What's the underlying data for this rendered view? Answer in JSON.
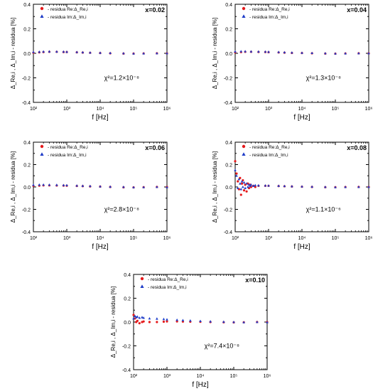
{
  "chart_data": [
    {
      "type": "scatter",
      "panel_label": "x=0.02",
      "chi2_text": "χ²=1.2×10⁻⁸",
      "xlabel": "f  [Hz]",
      "ylabel": "Δ_Re,i , Δ_Im,i - residua [%]",
      "xscale": "log",
      "xlim": [
        100,
        1000000
      ],
      "ylim": [
        -0.4,
        0.4
      ],
      "yticks": [
        "0.4",
        "0.2",
        "0.0",
        "-0.2",
        "-0.4"
      ],
      "xticks": [
        "10²",
        "10³",
        "10⁴",
        "10⁵",
        "10⁶"
      ],
      "legend": [
        "- residua Re:Δ_Re,i",
        "- residua Im:Δ_Im,i"
      ],
      "series": [
        {
          "name": "residua Re",
          "marker": "circle",
          "color": "#e41a1c",
          "points": [
            [
              100,
              0.005
            ],
            [
              150,
              0.008
            ],
            [
              200,
              0.01
            ],
            [
              300,
              0.012
            ],
            [
              500,
              0.012
            ],
            [
              800,
              0.01
            ],
            [
              1000,
              0.01
            ],
            [
              2000,
              0.008
            ],
            [
              3000,
              0.006
            ],
            [
              5000,
              0.004
            ],
            [
              10000,
              0.002
            ],
            [
              20000,
              0.0
            ],
            [
              50000,
              -0.002
            ],
            [
              100000,
              -0.002
            ],
            [
              200000,
              -0.001
            ],
            [
              500000,
              0.0
            ],
            [
              1000000,
              0.0
            ]
          ]
        },
        {
          "name": "residua Im",
          "marker": "triangle",
          "color": "#1f3cc8",
          "points": [
            [
              100,
              0.01
            ],
            [
              150,
              0.012
            ],
            [
              200,
              0.014
            ],
            [
              300,
              0.015
            ],
            [
              500,
              0.014
            ],
            [
              800,
              0.013
            ],
            [
              1000,
              0.012
            ],
            [
              2000,
              0.01
            ],
            [
              3000,
              0.008
            ],
            [
              5000,
              0.006
            ],
            [
              10000,
              0.004
            ],
            [
              20000,
              0.002
            ],
            [
              50000,
              0.0
            ],
            [
              100000,
              -0.002
            ],
            [
              200000,
              -0.001
            ],
            [
              500000,
              0.0
            ],
            [
              1000000,
              0.0
            ]
          ]
        }
      ]
    },
    {
      "type": "scatter",
      "panel_label": "x=0.04",
      "chi2_text": "χ²=1.3×10⁻⁸",
      "xlabel": "f  [Hz]",
      "ylabel": "Δ_Re,i , Δ_Im,i - residua [%]",
      "xscale": "log",
      "xlim": [
        100,
        1000000
      ],
      "ylim": [
        -0.4,
        0.4
      ],
      "yticks": [
        "0.4",
        "0.2",
        "0.0",
        "-0.2",
        "-0.4"
      ],
      "xticks": [
        "10²",
        "10³",
        "10⁴",
        "10⁵",
        "10⁶"
      ],
      "legend": [
        "- residua Re:Δ_Re,i",
        "- residua Im:Δ_Im,i"
      ],
      "series": [
        {
          "name": "residua Re",
          "marker": "circle",
          "color": "#e41a1c",
          "points": [
            [
              100,
              0.008
            ],
            [
              150,
              0.01
            ],
            [
              200,
              0.012
            ],
            [
              300,
              0.012
            ],
            [
              500,
              0.011
            ],
            [
              800,
              0.01
            ],
            [
              1000,
              0.009
            ],
            [
              2000,
              0.007
            ],
            [
              3000,
              0.005
            ],
            [
              5000,
              0.003
            ],
            [
              10000,
              0.002
            ],
            [
              20000,
              0.0
            ],
            [
              50000,
              -0.002
            ],
            [
              100000,
              -0.003
            ],
            [
              200000,
              -0.001
            ],
            [
              500000,
              0.0
            ],
            [
              1000000,
              0.0
            ]
          ]
        },
        {
          "name": "residua Im",
          "marker": "triangle",
          "color": "#1f3cc8",
          "points": [
            [
              100,
              0.014
            ],
            [
              150,
              0.016
            ],
            [
              200,
              0.016
            ],
            [
              300,
              0.015
            ],
            [
              500,
              0.014
            ],
            [
              800,
              0.013
            ],
            [
              1000,
              0.012
            ],
            [
              2000,
              0.01
            ],
            [
              3000,
              0.008
            ],
            [
              5000,
              0.006
            ],
            [
              10000,
              0.004
            ],
            [
              20000,
              0.002
            ],
            [
              50000,
              0.0
            ],
            [
              100000,
              -0.002
            ],
            [
              200000,
              -0.001
            ],
            [
              500000,
              0.0
            ],
            [
              1000000,
              0.0
            ]
          ]
        }
      ]
    },
    {
      "type": "scatter",
      "panel_label": "x=0.06",
      "chi2_text": "χ²=2.8×10⁻⁸",
      "xlabel": "f  [Hz]",
      "ylabel": "Δ_Re,i , Δ_Im,i - residua [%]",
      "xscale": "log",
      "xlim": [
        100,
        1000000
      ],
      "ylim": [
        -0.4,
        0.4
      ],
      "yticks": [
        "0.4",
        "0.2",
        "0.0",
        "-0.2",
        "-0.4"
      ],
      "xticks": [
        "10²",
        "10³",
        "10⁴",
        "10⁵",
        "10⁶"
      ],
      "legend": [
        "- residua Re:Δ_Re,i",
        "- residua Im:Δ_Im,i"
      ],
      "series": [
        {
          "name": "residua Re",
          "marker": "circle",
          "color": "#e41a1c",
          "points": [
            [
              100,
              0.01
            ],
            [
              150,
              0.012
            ],
            [
              200,
              0.014
            ],
            [
              300,
              0.014
            ],
            [
              500,
              0.013
            ],
            [
              800,
              0.012
            ],
            [
              1000,
              0.011
            ],
            [
              2000,
              0.009
            ],
            [
              3000,
              0.007
            ],
            [
              5000,
              0.005
            ],
            [
              10000,
              0.003
            ],
            [
              20000,
              0.0
            ],
            [
              50000,
              -0.003
            ],
            [
              100000,
              -0.004
            ],
            [
              200000,
              -0.002
            ],
            [
              500000,
              0.0
            ],
            [
              1000000,
              0.0
            ]
          ]
        },
        {
          "name": "residua Im",
          "marker": "triangle",
          "color": "#1f3cc8",
          "points": [
            [
              100,
              0.018
            ],
            [
              150,
              0.02
            ],
            [
              200,
              0.02
            ],
            [
              300,
              0.019
            ],
            [
              500,
              0.018
            ],
            [
              800,
              0.016
            ],
            [
              1000,
              0.015
            ],
            [
              2000,
              0.012
            ],
            [
              3000,
              0.01
            ],
            [
              5000,
              0.008
            ],
            [
              10000,
              0.005
            ],
            [
              20000,
              0.002
            ],
            [
              50000,
              0.0
            ],
            [
              100000,
              -0.003
            ],
            [
              200000,
              -0.002
            ],
            [
              500000,
              0.0
            ],
            [
              1000000,
              -0.002
            ]
          ]
        }
      ]
    },
    {
      "type": "scatter",
      "panel_label": "x=0.08",
      "chi2_text": "χ²=1.1×10⁻⁶",
      "xlabel": "f  [Hz]",
      "ylabel": "Δ_Re,i , Δ_Im,i - residua [%]",
      "xscale": "log",
      "xlim": [
        100,
        1000000
      ],
      "ylim": [
        -0.4,
        0.4
      ],
      "yticks": [
        "0.4",
        "0.2",
        "0.0",
        "-0.2",
        "-0.4"
      ],
      "xticks": [
        "10²",
        "10³",
        "10⁴",
        "10⁵",
        "10⁶"
      ],
      "legend": [
        "- residua Re:Δ_Re,i",
        "- residua Im:Δ_Im,i"
      ],
      "series": [
        {
          "name": "residua Re",
          "marker": "circle",
          "color": "#e41a1c",
          "points": [
            [
              100,
              0.23
            ],
            [
              110,
              0.12
            ],
            [
              120,
              0.05
            ],
            [
              130,
              -0.02
            ],
            [
              140,
              0.08
            ],
            [
              150,
              -0.07
            ],
            [
              160,
              0.03
            ],
            [
              170,
              0.06
            ],
            [
              185,
              -0.03
            ],
            [
              200,
              0.02
            ],
            [
              220,
              -0.04
            ],
            [
              240,
              0.03
            ],
            [
              260,
              -0.01
            ],
            [
              280,
              0.02
            ],
            [
              300,
              0.0
            ],
            [
              350,
              0.01
            ],
            [
              400,
              0.0
            ],
            [
              500,
              0.01
            ],
            [
              800,
              0.01
            ],
            [
              1000,
              0.01
            ],
            [
              2000,
              0.008
            ],
            [
              3000,
              0.006
            ],
            [
              5000,
              0.004
            ],
            [
              10000,
              0.002
            ],
            [
              20000,
              0.0
            ],
            [
              50000,
              -0.002
            ],
            [
              100000,
              -0.002
            ],
            [
              200000,
              -0.001
            ],
            [
              500000,
              0.0
            ],
            [
              1000000,
              0.0
            ]
          ]
        },
        {
          "name": "residua Im",
          "marker": "triangle",
          "color": "#1f3cc8",
          "points": [
            [
              100,
              0.15
            ],
            [
              110,
              0.1
            ],
            [
              120,
              -0.01
            ],
            [
              130,
              0.07
            ],
            [
              140,
              0.03
            ],
            [
              150,
              -0.02
            ],
            [
              160,
              0.05
            ],
            [
              170,
              0.0
            ],
            [
              185,
              0.04
            ],
            [
              200,
              -0.01
            ],
            [
              220,
              0.03
            ],
            [
              240,
              0.0
            ],
            [
              260,
              0.02
            ],
            [
              280,
              0.01
            ],
            [
              300,
              0.02
            ],
            [
              350,
              0.01
            ],
            [
              400,
              0.015
            ],
            [
              500,
              0.014
            ],
            [
              800,
              0.013
            ],
            [
              1000,
              0.012
            ],
            [
              2000,
              0.01
            ],
            [
              3000,
              0.008
            ],
            [
              5000,
              0.006
            ],
            [
              10000,
              0.004
            ],
            [
              20000,
              0.002
            ],
            [
              50000,
              0.0
            ],
            [
              100000,
              -0.002
            ],
            [
              200000,
              -0.001
            ],
            [
              500000,
              0.0
            ],
            [
              1000000,
              0.0
            ]
          ]
        }
      ]
    },
    {
      "type": "scatter",
      "panel_label": "x=0.10",
      "chi2_text": "χ²=7.4×10⁻⁸",
      "xlabel": "f  [Hz]",
      "ylabel": "Δ_Re,i , Δ_Im,i - residua [%]",
      "xscale": "log",
      "xlim": [
        100,
        1000000
      ],
      "ylim": [
        -0.4,
        0.4
      ],
      "yticks": [
        "0.4",
        "0.2",
        "0.0",
        "-0.2",
        "-0.4"
      ],
      "xticks": [
        "10²",
        "10³",
        "10⁴",
        "10⁵",
        "10⁶"
      ],
      "legend": [
        "- residua Re:Δ_Re,i",
        "- residua Im:Δ_Im,i"
      ],
      "series": [
        {
          "name": "residua Re",
          "marker": "circle",
          "color": "#e41a1c",
          "points": [
            [
              100,
              0.06
            ],
            [
              110,
              0.03
            ],
            [
              120,
              0.0
            ],
            [
              130,
              0.01
            ],
            [
              150,
              -0.01
            ],
            [
              180,
              0.0
            ],
            [
              200,
              0.005
            ],
            [
              300,
              0.0
            ],
            [
              500,
              0.0
            ],
            [
              800,
              0.003
            ],
            [
              1000,
              0.005
            ],
            [
              2000,
              0.005
            ],
            [
              3000,
              0.004
            ],
            [
              5000,
              0.003
            ],
            [
              10000,
              0.002
            ],
            [
              20000,
              0.0
            ],
            [
              50000,
              -0.002
            ],
            [
              100000,
              -0.003
            ],
            [
              200000,
              -0.002
            ],
            [
              500000,
              0.0
            ],
            [
              1000000,
              0.0
            ]
          ]
        },
        {
          "name": "residua Im",
          "marker": "triangle",
          "color": "#1f3cc8",
          "points": [
            [
              100,
              0.03
            ],
            [
              110,
              0.05
            ],
            [
              120,
              0.04
            ],
            [
              130,
              0.045
            ],
            [
              150,
              0.035
            ],
            [
              180,
              0.04
            ],
            [
              200,
              0.035
            ],
            [
              300,
              0.03
            ],
            [
              500,
              0.028
            ],
            [
              800,
              0.025
            ],
            [
              1000,
              0.022
            ],
            [
              2000,
              0.018
            ],
            [
              3000,
              0.015
            ],
            [
              5000,
              0.012
            ],
            [
              10000,
              0.008
            ],
            [
              20000,
              0.005
            ],
            [
              50000,
              0.002
            ],
            [
              100000,
              0.0
            ],
            [
              200000,
              -0.002
            ],
            [
              500000,
              0.0
            ],
            [
              1000000,
              -0.002
            ]
          ]
        }
      ]
    }
  ]
}
